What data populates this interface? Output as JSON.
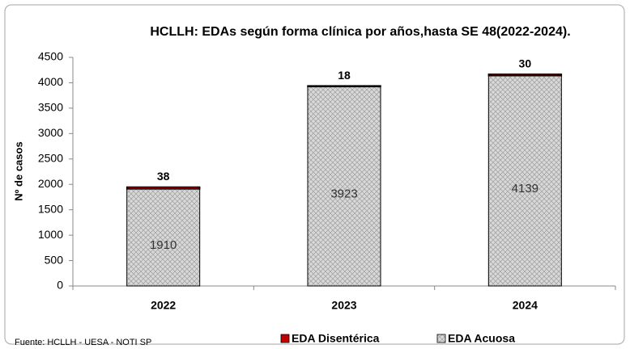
{
  "chart_data": {
    "type": "stacked_bar",
    "title": "HCLLH: EDAs según forma clínica por años,hasta SE 48(2022-2024).",
    "y_label": "Nº de casos",
    "source": "Fuente: HCLLH - UESA - NOTI SP",
    "categories": [
      "2022",
      "2023",
      "2024"
    ],
    "series": [
      {
        "name": "EDA Acuosa",
        "color": "#d9d9d9",
        "values": [
          1910,
          3923,
          4139
        ]
      },
      {
        "name": "EDA Disentérica",
        "color": "#c00000",
        "values": [
          38,
          18,
          30
        ]
      }
    ],
    "ylim": [
      0,
      4500
    ],
    "yticks": [
      0,
      500,
      1000,
      1500,
      2000,
      2500,
      3000,
      3500,
      4000,
      4500
    ]
  }
}
